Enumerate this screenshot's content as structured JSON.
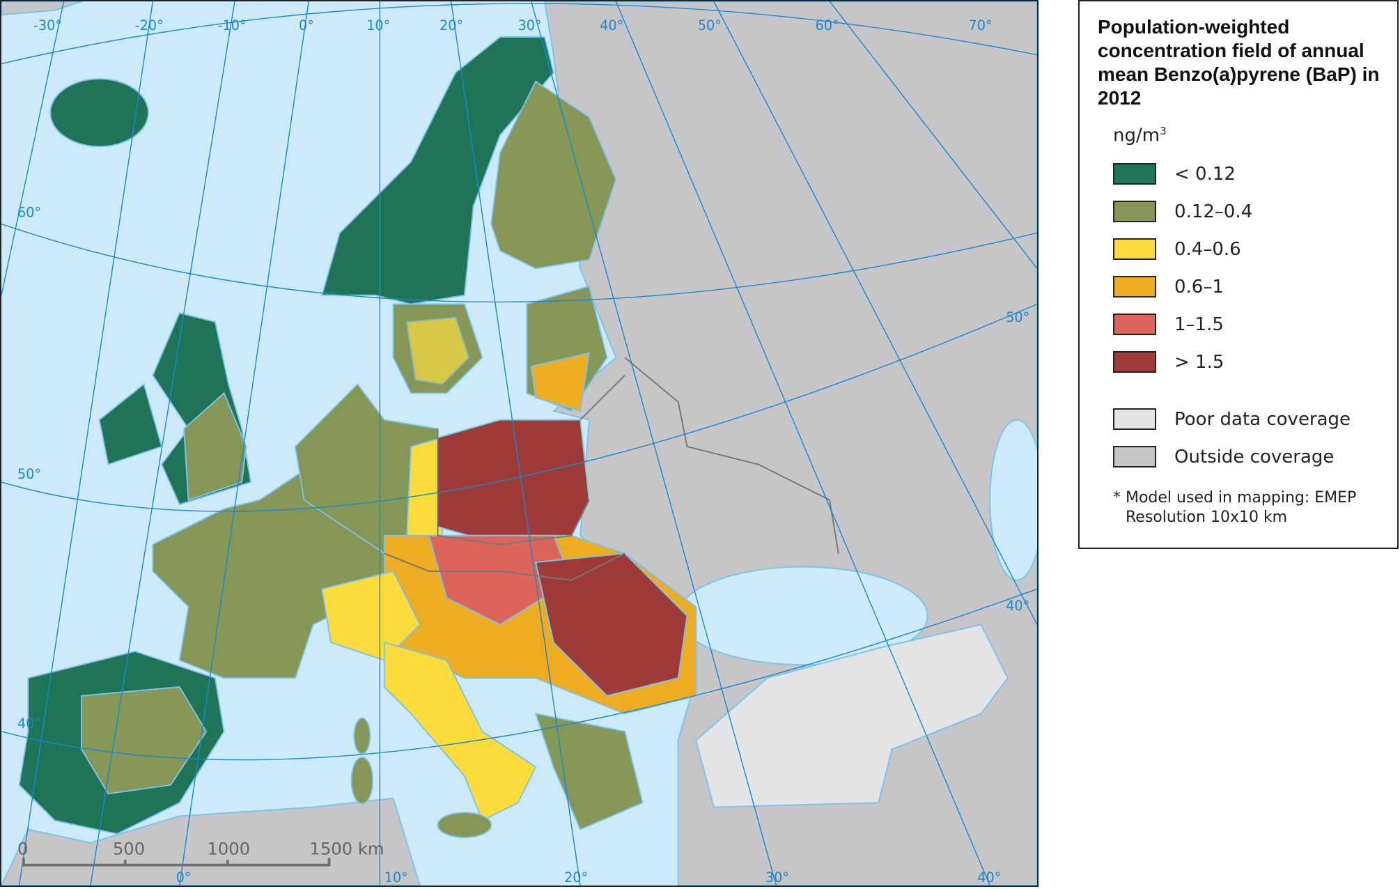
{
  "legend": {
    "title": "Population-weighted concentration field of annual mean Benzo(a)pyrene (BaP) in 2012",
    "unit": "ng/m",
    "unit_sup": "3",
    "classes": [
      {
        "label": "< 0.12",
        "color": "#1f7458"
      },
      {
        "label": "0.12–0.4",
        "color": "#869657"
      },
      {
        "label": "0.4–0.6",
        "color": "#fcdc3c"
      },
      {
        "label": "0.6–1",
        "color": "#eeac22"
      },
      {
        "label": "1–1.5",
        "color": "#dd645a"
      },
      {
        "label": "> 1.5",
        "color": "#9e3a38"
      }
    ],
    "other": [
      {
        "label": "Poor data coverage",
        "color": "#e3e4e6"
      },
      {
        "label": "Outside coverage",
        "color": "#c6c6c8"
      }
    ],
    "note_line1": "* Model used in mapping: EMEP",
    "note_line2": "Resolution 10x10 km"
  },
  "map": {
    "sea_color": "#cdeafb",
    "graticule_color": "#1b88cc",
    "top_longitudes": [
      "-30°",
      "-20°",
      "-10°",
      "0°",
      "10°",
      "20°",
      "30°",
      "40°",
      "50°",
      "60°",
      "70°"
    ],
    "left_latitudes": [
      "60°",
      "50°",
      "40°"
    ],
    "right_latitudes": [
      "50°",
      "40°"
    ],
    "bottom_longitudes": [
      "0°",
      "10°",
      "20°",
      "30°",
      "40°"
    ]
  },
  "scalebar": {
    "ticks": [
      "0",
      "500",
      "1000",
      "1500 km"
    ]
  }
}
